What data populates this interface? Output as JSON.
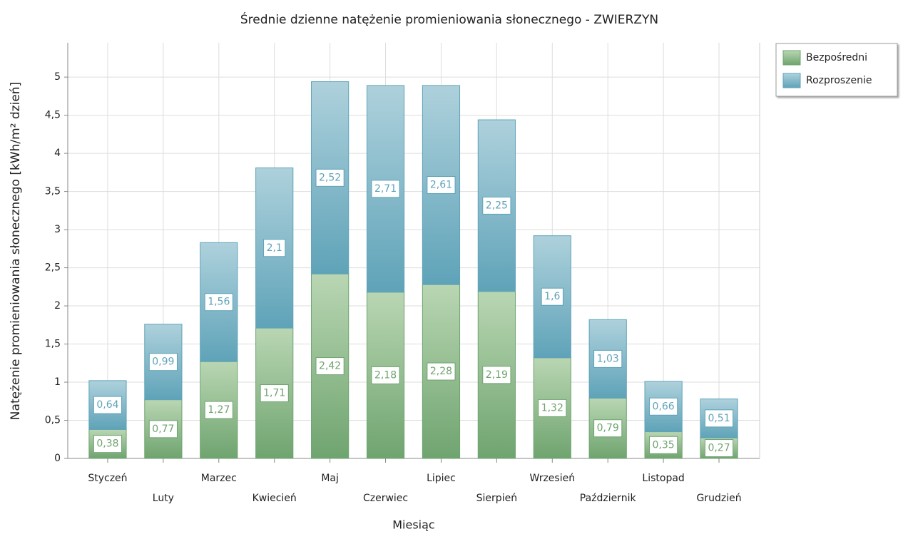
{
  "chart_data": {
    "type": "bar",
    "stacked": true,
    "title": "Średnie dzienne natężenie promieniowania słonecznego - ZWIERZYN",
    "x_label": "Miesiąc",
    "y_label": "Natężenie promieniowania słonecznego [kWh/m² dzień]",
    "categories": [
      "Styczeń",
      "Luty",
      "Marzec",
      "Kwiecień",
      "Maj",
      "Czerwiec",
      "Lipiec",
      "Sierpień",
      "Wrzesień",
      "Październik",
      "Listopad",
      "Grudzień"
    ],
    "series": [
      {
        "name": "Bezpośredni",
        "color": "#6fa46f",
        "values": [
          0.38,
          0.77,
          1.27,
          1.71,
          2.42,
          2.18,
          2.28,
          2.19,
          1.32,
          0.79,
          0.35,
          0.27
        ],
        "value_labels": [
          "0,38",
          "0,77",
          "1,27",
          "1,71",
          "2,42",
          "2,18",
          "2,28",
          "2,19",
          "1,32",
          "0,79",
          "0,35",
          "0,27"
        ]
      },
      {
        "name": "Rozproszenie",
        "color": "#5fa3b8",
        "values": [
          0.64,
          0.99,
          1.56,
          2.1,
          2.52,
          2.71,
          2.61,
          2.25,
          1.6,
          1.03,
          0.66,
          0.51
        ],
        "value_labels": [
          "0,64",
          "0,99",
          "1,56",
          "2,1",
          "2,52",
          "2,71",
          "2,61",
          "2,25",
          "1,6",
          "1,03",
          "0,66",
          "0,51"
        ]
      }
    ],
    "ylim": [
      0,
      5.45
    ],
    "yticks": [
      0,
      {
        "value": 0.5,
        "label": "0,5"
      },
      1,
      {
        "value": 1.5,
        "label": "1,5"
      },
      2,
      {
        "value": 2.5,
        "label": "2,5"
      },
      3,
      {
        "value": 3.5,
        "label": "3,5"
      },
      4,
      {
        "value": 4.5,
        "label": "4,5"
      },
      5
    ],
    "grid": true,
    "legend": "top-right"
  }
}
